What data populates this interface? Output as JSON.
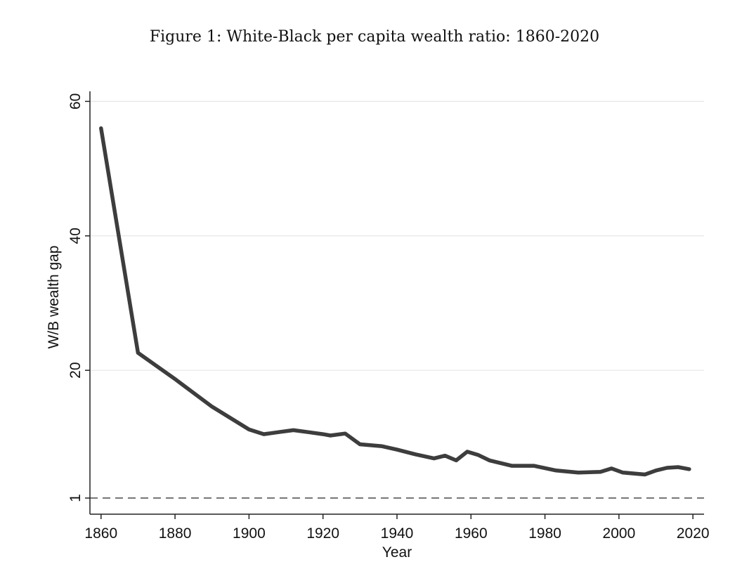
{
  "figure_caption": "Figure 1: White-Black per capita wealth ratio: 1860-2020",
  "chart_data": {
    "type": "line",
    "title": "Figure 1: White-Black per capita wealth ratio: 1860-2020",
    "xlabel": "Year",
    "ylabel": "W/B wealth gap",
    "xlim": [
      1857,
      2023
    ],
    "ylim": [
      -1.4,
      61.5
    ],
    "x_ticks": [
      1860,
      1880,
      1900,
      1920,
      1940,
      1960,
      1980,
      2000,
      2020
    ],
    "y_ticks": [
      1,
      20,
      40,
      60
    ],
    "grid": true,
    "reference_line": {
      "y": 1,
      "style": "dashed"
    },
    "series": [
      {
        "name": "W/B wealth gap",
        "color": "#3d3d3d",
        "x": [
          1860,
          1870,
          1880,
          1890,
          1900,
          1904,
          1908,
          1912,
          1916,
          1920,
          1922,
          1926,
          1930,
          1936,
          1940,
          1945,
          1950,
          1953,
          1956,
          1959,
          1962,
          1965,
          1971,
          1977,
          1983,
          1989,
          1995,
          1998,
          2001,
          2007,
          2010,
          2013,
          2016,
          2019
        ],
        "values": [
          56.0,
          22.6,
          18.7,
          14.6,
          11.2,
          10.5,
          10.8,
          11.1,
          10.8,
          10.5,
          10.3,
          10.6,
          9.0,
          8.7,
          8.2,
          7.5,
          6.9,
          7.3,
          6.6,
          7.9,
          7.4,
          6.6,
          5.8,
          5.8,
          5.1,
          4.8,
          4.9,
          5.4,
          4.8,
          4.5,
          5.1,
          5.5,
          5.6,
          5.3
        ]
      }
    ]
  }
}
